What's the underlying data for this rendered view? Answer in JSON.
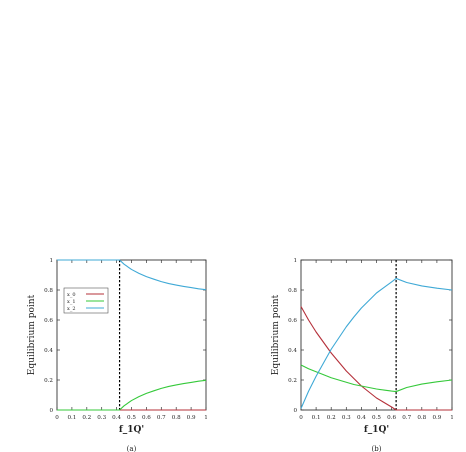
{
  "chart_data": [
    {
      "type": "line",
      "panel_label": "(a)",
      "xlabel": "f_1Q'",
      "ylabel": "Equilibrium point",
      "xlim": [
        0,
        1
      ],
      "ylim": [
        0,
        1
      ],
      "xticks": [
        "0",
        "0.1",
        "0.2",
        "0.3",
        "0.4",
        "0.5",
        "0.6",
        "0.7",
        "0.8",
        "0.9",
        "1"
      ],
      "yticks": [
        "0",
        "0.2",
        "0.4",
        "0.6",
        "0.8",
        "1"
      ],
      "grid": false,
      "legend_position": "upper-left",
      "threshold_x": 0.42,
      "series": [
        {
          "name": "x_0",
          "color": "#b5303a",
          "x": [
            0,
            0.1,
            0.2,
            0.3,
            0.42,
            0.5,
            0.6,
            0.7,
            0.8,
            0.9,
            1.0
          ],
          "y": [
            0,
            0,
            0,
            0,
            0,
            0,
            0,
            0,
            0,
            0,
            0
          ]
        },
        {
          "name": "x_1",
          "color": "#35c93a",
          "x": [
            0,
            0.1,
            0.2,
            0.3,
            0.42,
            0.45,
            0.5,
            0.55,
            0.6,
            0.65,
            0.7,
            0.75,
            0.8,
            0.85,
            0.9,
            0.95,
            1.0
          ],
          "y": [
            0,
            0,
            0,
            0,
            0,
            0.028,
            0.063,
            0.089,
            0.111,
            0.128,
            0.144,
            0.157,
            0.167,
            0.176,
            0.184,
            0.192,
            0.198
          ]
        },
        {
          "name": "x_2",
          "color": "#3fa9d6",
          "x": [
            0,
            0.1,
            0.2,
            0.3,
            0.42,
            0.45,
            0.5,
            0.55,
            0.6,
            0.65,
            0.7,
            0.75,
            0.8,
            0.85,
            0.9,
            0.95,
            1.0
          ],
          "y": [
            1,
            1,
            1,
            1,
            1,
            0.972,
            0.937,
            0.911,
            0.889,
            0.872,
            0.856,
            0.843,
            0.833,
            0.824,
            0.816,
            0.808,
            0.802
          ]
        }
      ]
    },
    {
      "type": "line",
      "panel_label": "(b)",
      "xlabel": "f_1Q'",
      "ylabel": "Equilibrium point",
      "xlim": [
        0,
        1
      ],
      "ylim": [
        0,
        1
      ],
      "xticks": [
        "0",
        "0.1",
        "0.2",
        "0.3",
        "0.4",
        "0.5",
        "0.6",
        "0.7",
        "0.8",
        "0.9",
        "1"
      ],
      "yticks": [
        "0",
        "0.2",
        "0.4",
        "0.6",
        "0.8",
        "1"
      ],
      "grid": false,
      "threshold_x": 0.63,
      "series": [
        {
          "name": "x_0",
          "color": "#b5303a",
          "x": [
            0,
            0.05,
            0.1,
            0.15,
            0.2,
            0.25,
            0.3,
            0.35,
            0.4,
            0.45,
            0.5,
            0.55,
            0.6,
            0.63,
            0.7,
            0.8,
            0.9,
            1.0
          ],
          "y": [
            0.69,
            0.6,
            0.52,
            0.45,
            0.38,
            0.32,
            0.26,
            0.21,
            0.16,
            0.12,
            0.08,
            0.05,
            0.02,
            0,
            0,
            0,
            0,
            0
          ]
        },
        {
          "name": "x_1",
          "color": "#35c93a",
          "x": [
            0,
            0.05,
            0.1,
            0.15,
            0.2,
            0.25,
            0.3,
            0.35,
            0.4,
            0.45,
            0.5,
            0.55,
            0.6,
            0.63,
            0.7,
            0.8,
            0.9,
            1.0
          ],
          "y": [
            0.3,
            0.275,
            0.255,
            0.235,
            0.215,
            0.2,
            0.185,
            0.17,
            0.16,
            0.15,
            0.14,
            0.133,
            0.126,
            0.123,
            0.15,
            0.173,
            0.188,
            0.2
          ]
        },
        {
          "name": "x_2",
          "color": "#3fa9d6",
          "x": [
            0,
            0.05,
            0.1,
            0.15,
            0.2,
            0.25,
            0.3,
            0.35,
            0.4,
            0.45,
            0.5,
            0.55,
            0.6,
            0.63,
            0.7,
            0.8,
            0.9,
            1.0
          ],
          "y": [
            0.01,
            0.125,
            0.225,
            0.315,
            0.405,
            0.48,
            0.555,
            0.62,
            0.68,
            0.73,
            0.78,
            0.817,
            0.854,
            0.877,
            0.85,
            0.827,
            0.812,
            0.8
          ]
        }
      ]
    }
  ]
}
